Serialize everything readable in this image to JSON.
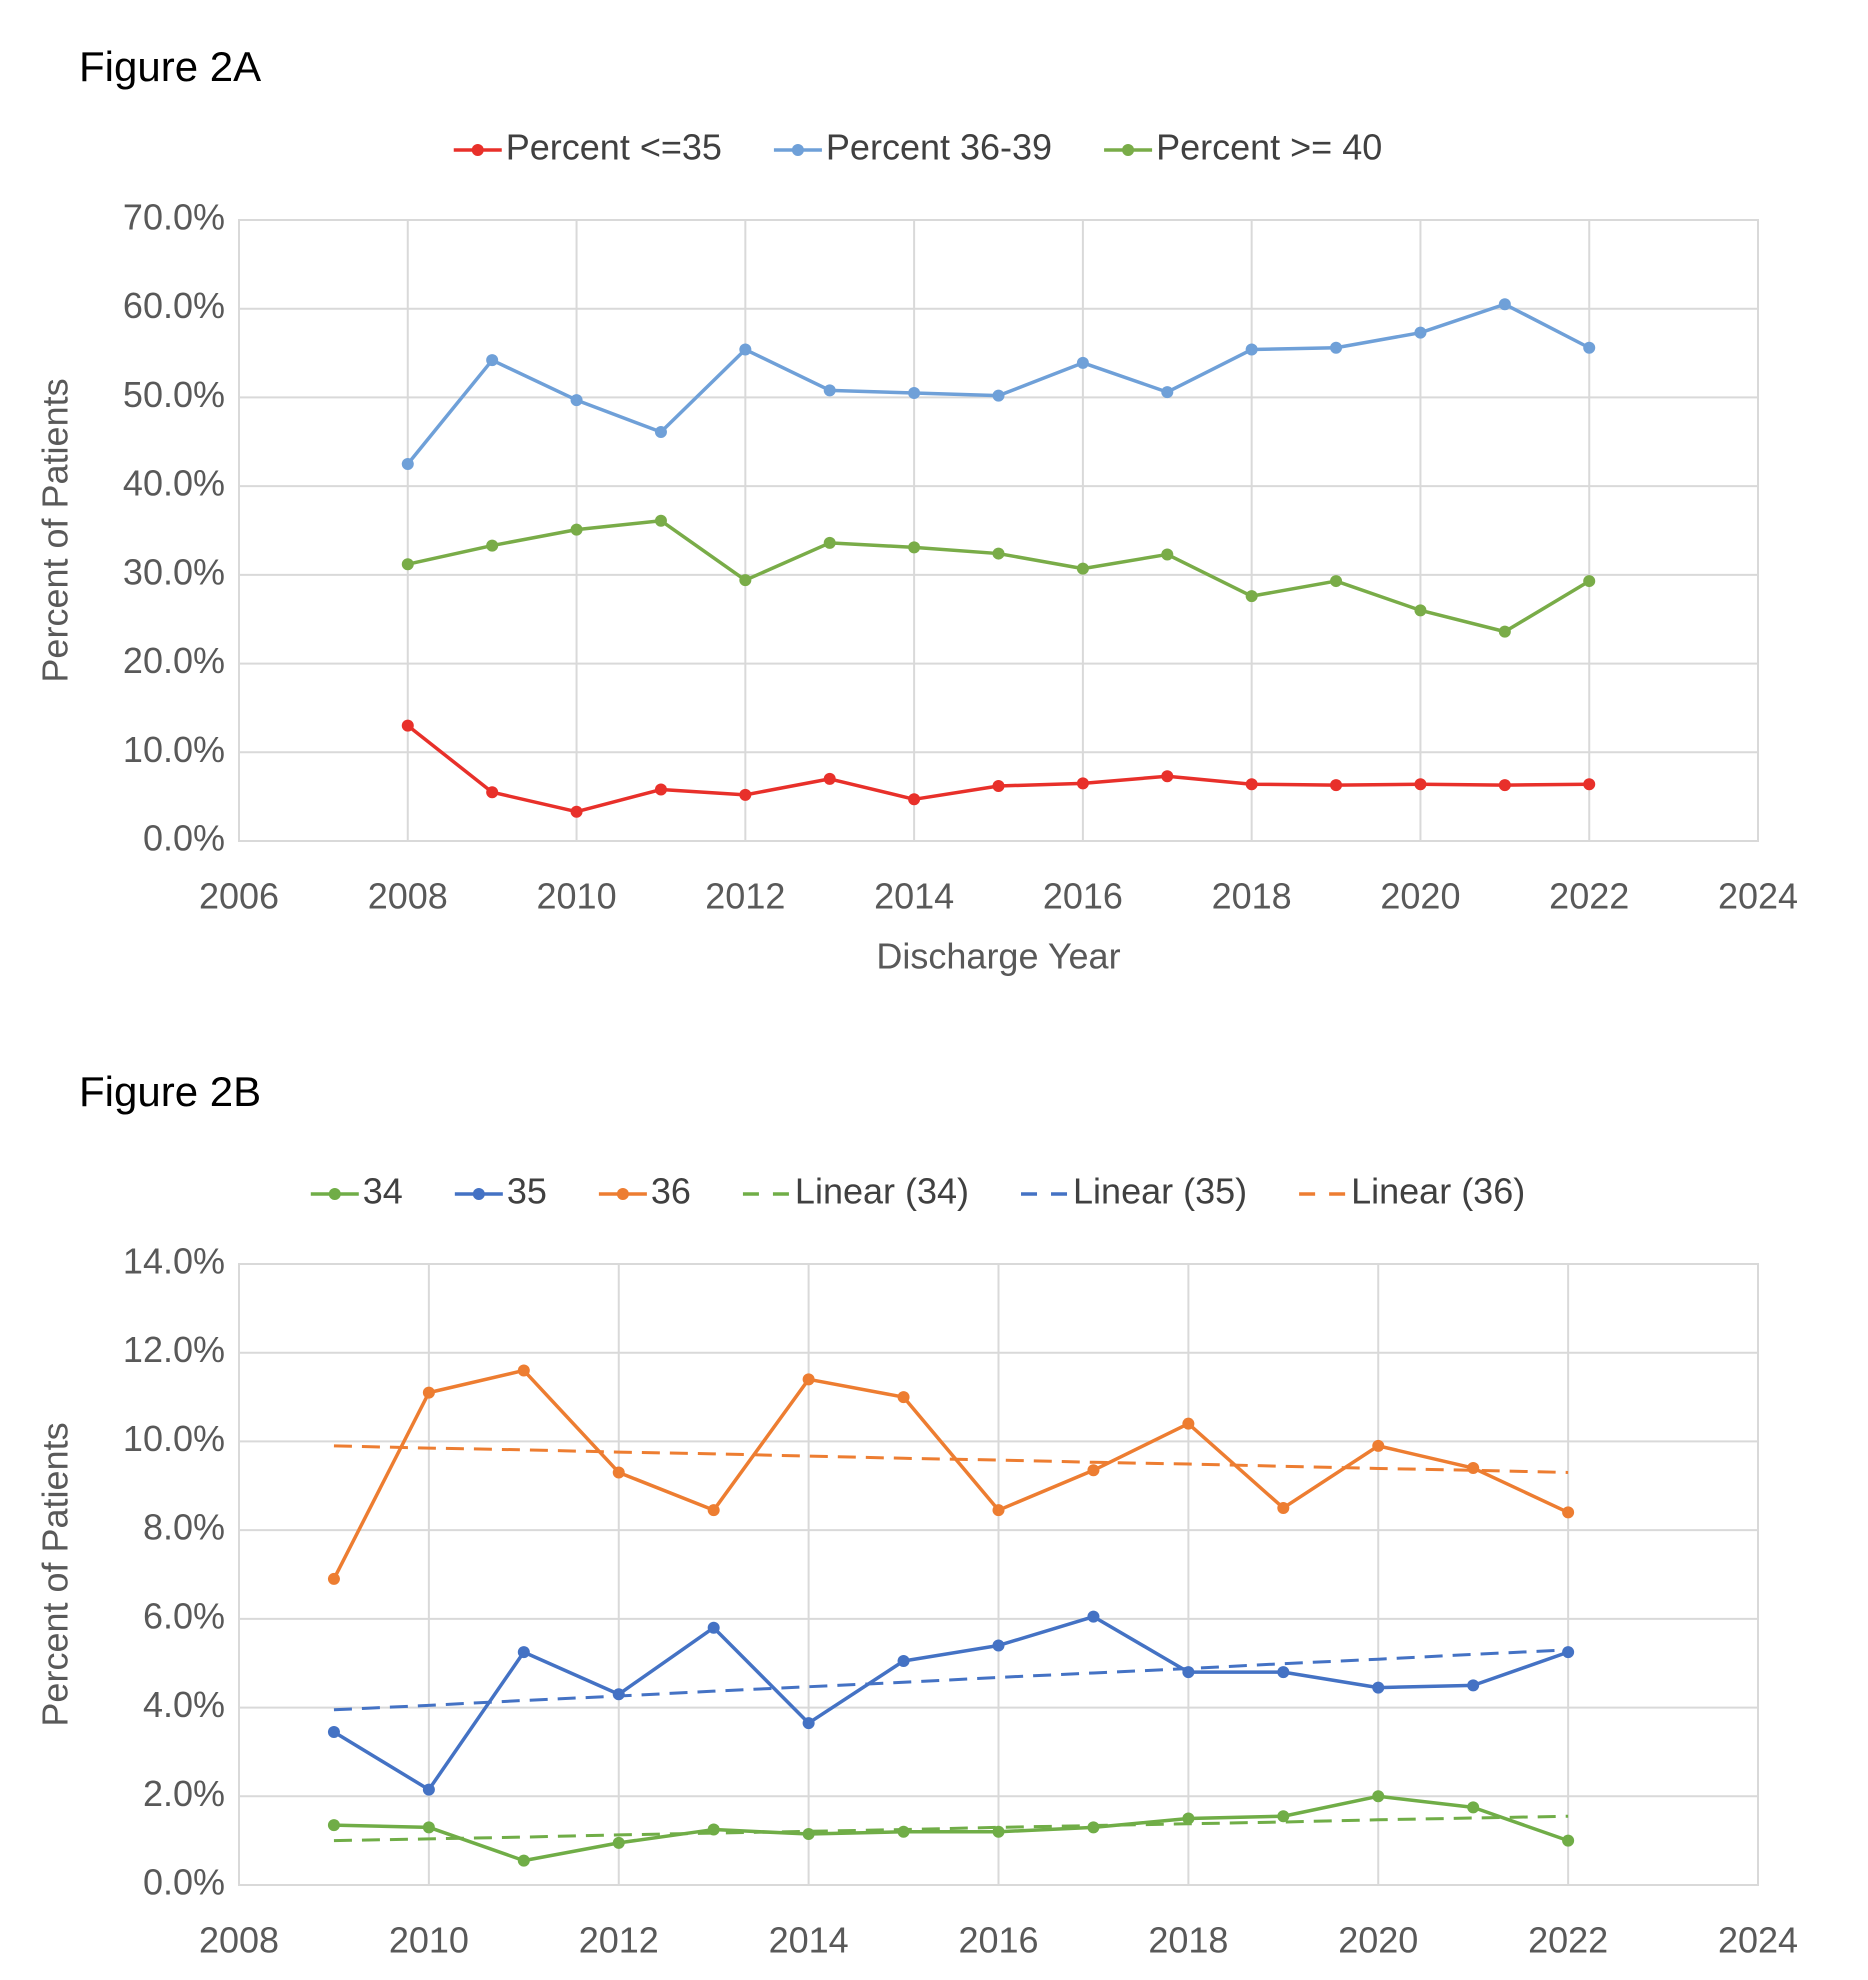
{
  "chart_data": [
    {
      "type": "line",
      "title": "Figure 2A",
      "xlabel": "Discharge Year",
      "ylabel": "Percent of Patients",
      "x": [
        2008,
        2009,
        2010,
        2011,
        2012,
        2013,
        2014,
        2015,
        2016,
        2017,
        2018,
        2019,
        2020,
        2021,
        2022
      ],
      "xlim": [
        2006,
        2024
      ],
      "xticks": [
        2006,
        2008,
        2010,
        2012,
        2014,
        2016,
        2018,
        2020,
        2022,
        2024
      ],
      "ylim": [
        0,
        70
      ],
      "yticks": [
        {
          "value": 0,
          "label": "0.0%"
        },
        {
          "value": 10,
          "label": "10.0%"
        },
        {
          "value": 20,
          "label": "20.0%"
        },
        {
          "value": 30,
          "label": "30.0%"
        },
        {
          "value": 40,
          "label": "40.0%"
        },
        {
          "value": 50,
          "label": "50.0%"
        },
        {
          "value": 60,
          "label": "60.0%"
        },
        {
          "value": 70,
          "label": "70.0%"
        }
      ],
      "grid": true,
      "legend": "top",
      "series": [
        {
          "name": "Percent <=35",
          "color": "#e8302a",
          "values": [
            13.0,
            5.5,
            3.3,
            5.8,
            5.2,
            7.0,
            4.7,
            6.2,
            6.5,
            7.3,
            6.4,
            6.3,
            6.4,
            6.3,
            6.4
          ]
        },
        {
          "name": "Percent 36-39",
          "color": "#6fa0d8",
          "values": [
            42.5,
            54.2,
            49.7,
            46.1,
            55.4,
            50.8,
            50.5,
            50.2,
            53.9,
            50.6,
            55.4,
            55.6,
            57.3,
            60.5,
            55.6
          ]
        },
        {
          "name": "Percent >= 40",
          "color": "#79ac48",
          "values": [
            31.2,
            33.3,
            35.1,
            36.1,
            29.4,
            33.6,
            33.1,
            32.4,
            30.7,
            32.3,
            27.6,
            29.3,
            26.0,
            23.6,
            29.3
          ]
        }
      ]
    },
    {
      "type": "line",
      "title": "Figure 2B",
      "xlabel": "Discharge Year",
      "ylabel": "Percent of Patients",
      "x": [
        2009,
        2010,
        2011,
        2012,
        2013,
        2014,
        2015,
        2016,
        2017,
        2018,
        2019,
        2020,
        2021,
        2022
      ],
      "xlim": [
        2008,
        2024
      ],
      "xticks": [
        2008,
        2010,
        2012,
        2014,
        2016,
        2018,
        2020,
        2022,
        2024
      ],
      "ylim": [
        0,
        14
      ],
      "yticks": [
        {
          "value": 0,
          "label": "0.0%"
        },
        {
          "value": 2,
          "label": "2.0%"
        },
        {
          "value": 4,
          "label": "4.0%"
        },
        {
          "value": 6,
          "label": "6.0%"
        },
        {
          "value": 8,
          "label": "8.0%"
        },
        {
          "value": 10,
          "label": "10.0%"
        },
        {
          "value": 12,
          "label": "12.0%"
        },
        {
          "value": 14,
          "label": "14.0%"
        }
      ],
      "grid": true,
      "legend": "top",
      "series": [
        {
          "name": "34",
          "color": "#70ad47",
          "values": [
            1.35,
            1.3,
            0.55,
            0.95,
            1.25,
            1.15,
            1.2,
            1.2,
            1.3,
            1.5,
            1.55,
            2.0,
            1.75,
            1.0
          ]
        },
        {
          "name": "35",
          "color": "#4472c4",
          "values": [
            3.45,
            2.15,
            5.25,
            4.3,
            5.8,
            3.65,
            5.05,
            5.4,
            6.05,
            4.8,
            4.8,
            4.45,
            4.5,
            5.25
          ]
        },
        {
          "name": "36",
          "color": "#ed7d31",
          "values": [
            6.9,
            11.1,
            11.6,
            9.3,
            8.45,
            11.4,
            11.0,
            8.45,
            9.35,
            10.4,
            8.5,
            9.9,
            9.4,
            8.4
          ]
        },
        {
          "name": "Linear (34)",
          "color": "#70ad47",
          "dash": true,
          "marker": false,
          "values": [
            1.0,
            1.04,
            1.08,
            1.13,
            1.17,
            1.21,
            1.25,
            1.3,
            1.34,
            1.38,
            1.42,
            1.47,
            1.51,
            1.55
          ]
        },
        {
          "name": "Linear (35)",
          "color": "#4472c4",
          "dash": true,
          "marker": false,
          "values": [
            3.95,
            4.05,
            4.16,
            4.26,
            4.37,
            4.47,
            4.57,
            4.68,
            4.78,
            4.88,
            4.99,
            5.09,
            5.2,
            5.3
          ]
        },
        {
          "name": "Linear (36)",
          "color": "#ed7d31",
          "dash": true,
          "marker": false,
          "values": [
            9.9,
            9.85,
            9.81,
            9.76,
            9.72,
            9.67,
            9.62,
            9.58,
            9.53,
            9.49,
            9.44,
            9.39,
            9.35,
            9.3
          ]
        }
      ]
    }
  ]
}
